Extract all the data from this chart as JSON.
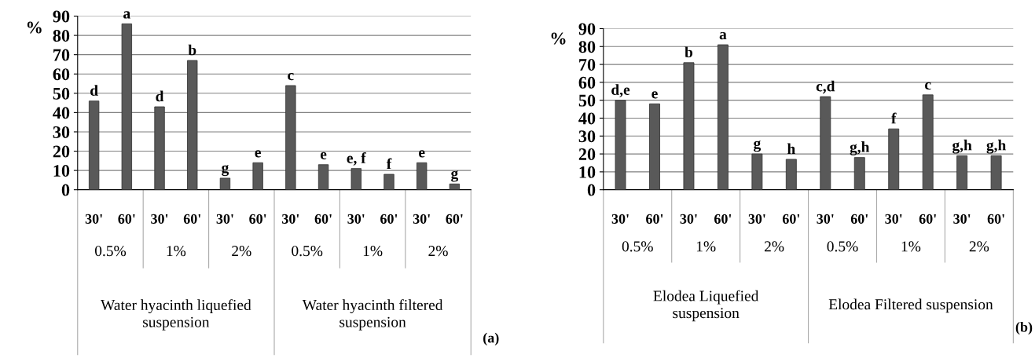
{
  "chart_data": [
    {
      "type": "bar",
      "ylabel": "%",
      "categories": [
        "30'",
        "60'",
        "30'",
        "60'",
        "30'",
        "60'",
        "30'",
        "60'",
        "30'",
        "60'",
        "30'",
        "60'"
      ],
      "values": [
        46,
        86,
        43,
        67,
        6,
        14,
        54,
        13,
        11,
        8,
        14,
        3
      ],
      "value_labels": [
        "d",
        "a",
        "d",
        "b",
        "g",
        "e",
        "c",
        "e",
        "e, f",
        "f",
        "e",
        "g"
      ],
      "color": "#595959",
      "ylim": [
        0,
        90
      ],
      "yticks": [
        0,
        10,
        20,
        30,
        40,
        50,
        60,
        70,
        80,
        90
      ],
      "grid": "y",
      "annotations": [
        "0.5%",
        "1%",
        "2%",
        "0.5%",
        "1%",
        "2%",
        "Water hyacinth liquefied\nsuspension",
        "Water hyacinth filtered\nsuspension",
        "(a)"
      ]
    },
    {
      "type": "bar",
      "ylabel": "%",
      "categories": [
        "30'",
        "60'",
        "30'",
        "60'",
        "30'",
        "60'",
        "30'",
        "60'",
        "30'",
        "60'",
        "30'",
        "60'"
      ],
      "values": [
        50,
        48,
        71,
        81,
        20,
        17,
        52,
        18,
        34,
        53,
        19,
        19
      ],
      "value_labels": [
        "d,e",
        "e",
        "b",
        "a",
        "g",
        "h",
        "c,d",
        "g,h",
        "f",
        "c",
        "g,h",
        "g,h"
      ],
      "color": "#595959",
      "ylim": [
        0,
        90
      ],
      "yticks": [
        0,
        10,
        20,
        30,
        40,
        50,
        60,
        70,
        80,
        90
      ],
      "grid": "y",
      "annotations": [
        "0.5%",
        "1%",
        "2%",
        "0.5%",
        "1%",
        "2%",
        "Elodea Liquefied\nsuspension",
        "Elodea Filtered suspension",
        "(b)"
      ]
    }
  ]
}
